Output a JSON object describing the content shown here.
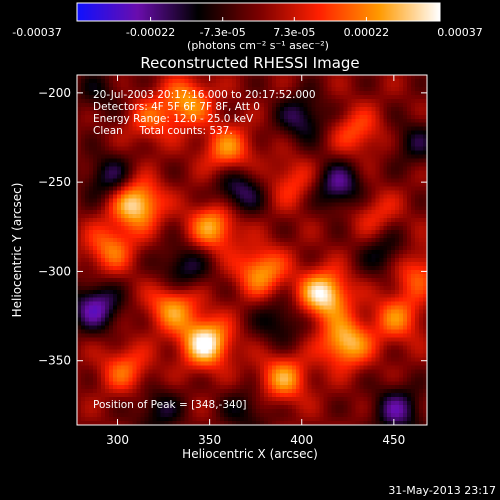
{
  "colorbar": {
    "tick_labels": [
      "-0.00037",
      "-0.00022",
      "-7.3e-05",
      "7.3e-05",
      "0.00022",
      "0.00037"
    ],
    "tick_values": [
      -0.00037,
      -0.00022,
      -7.3e-05,
      7.3e-05,
      0.00022,
      0.00037
    ],
    "range": [
      -0.00037,
      0.00037
    ],
    "unit_label": "(photons cm⁻² s⁻¹ asec⁻²)",
    "colormap": [
      "#1010ff",
      "#6a0dad",
      "#000000",
      "#7a0000",
      "#ff2000",
      "#ff9a00",
      "#ffffff"
    ]
  },
  "chart_data": {
    "type": "heatmap",
    "title": "Reconstructed RHESSI Image",
    "xlabel": "Heliocentric X (arcsec)",
    "ylabel": "Heliocentric Y (arcsec)",
    "xlim": [
      278,
      468
    ],
    "ylim": [
      -386,
      -190
    ],
    "xticks": [
      300,
      350,
      400,
      450
    ],
    "yticks": [
      -200,
      -250,
      -300,
      -350
    ],
    "annotations": [
      "20-Jul-2003 20:17:16.000 to 20:17:52.000",
      "Detectors: 4F 5F 6F 7F 8F, Att 0",
      "Energy Range: 12.0 - 25.0 keV",
      "Clean     Total counts: 537.",
      "Position of Peak = [348,-340]"
    ],
    "peak": {
      "x": 348,
      "y": -340
    },
    "blobs": [
      {
        "x": 338,
        "y": -205,
        "v": 0.00024
      },
      {
        "x": 360,
        "y": -232,
        "v": 0.00022
      },
      {
        "x": 310,
        "y": -262,
        "v": 0.00035
      },
      {
        "x": 296,
        "y": -287,
        "v": 0.0002
      },
      {
        "x": 352,
        "y": -275,
        "v": 0.00026
      },
      {
        "x": 378,
        "y": -300,
        "v": 0.00025
      },
      {
        "x": 412,
        "y": -313,
        "v": 0.00036
      },
      {
        "x": 330,
        "y": -320,
        "v": 0.00024
      },
      {
        "x": 348,
        "y": -340,
        "v": 0.00037
      },
      {
        "x": 424,
        "y": -340,
        "v": 0.0003
      },
      {
        "x": 452,
        "y": -326,
        "v": 0.0002
      },
      {
        "x": 462,
        "y": -300,
        "v": 0.00018
      },
      {
        "x": 430,
        "y": -222,
        "v": 0.00016
      },
      {
        "x": 390,
        "y": -360,
        "v": 0.00024
      },
      {
        "x": 304,
        "y": -355,
        "v": 0.00018
      },
      {
        "x": 318,
        "y": -215,
        "v": 0.00015
      },
      {
        "x": 395,
        "y": -250,
        "v": 0.00014
      },
      {
        "x": 440,
        "y": -268,
        "v": 0.00012
      },
      {
        "x": 288,
        "y": -320,
        "v": -0.00025
      },
      {
        "x": 296,
        "y": -248,
        "v": -0.00018
      },
      {
        "x": 366,
        "y": -255,
        "v": -0.0002
      },
      {
        "x": 420,
        "y": -252,
        "v": -0.00022
      },
      {
        "x": 446,
        "y": -290,
        "v": -0.00015
      },
      {
        "x": 336,
        "y": -298,
        "v": -0.00017
      },
      {
        "x": 388,
        "y": -328,
        "v": -0.00014
      },
      {
        "x": 400,
        "y": -214,
        "v": -0.00018
      },
      {
        "x": 452,
        "y": -378,
        "v": -0.00021
      },
      {
        "x": 322,
        "y": -378,
        "v": -0.00014
      },
      {
        "x": 290,
        "y": -200,
        "v": -0.0001
      },
      {
        "x": 462,
        "y": -228,
        "v": -0.00013
      },
      {
        "x": 370,
        "y": -378,
        "v": -0.00012
      }
    ]
  },
  "footer": {
    "timestamp": "31-May-2013 23:17"
  }
}
